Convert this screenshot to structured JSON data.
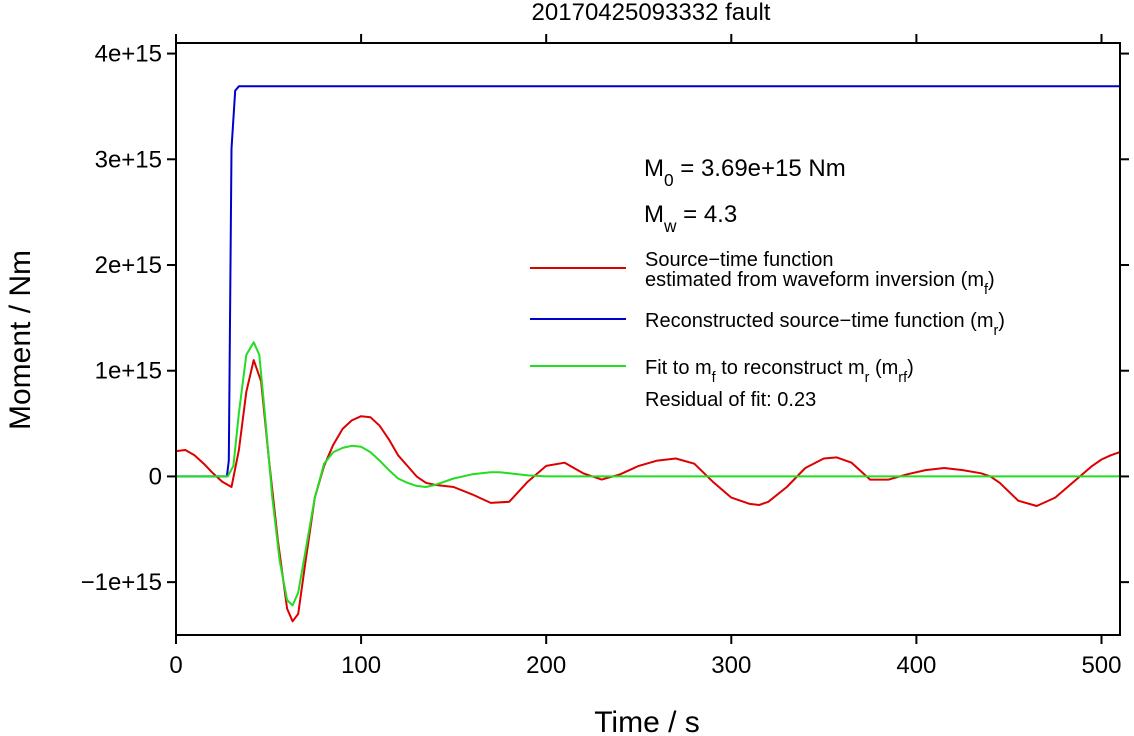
{
  "chart_data": {
    "type": "line",
    "title": "20170425093332 fault",
    "xlabel": "Time / s",
    "ylabel": "Moment / Nm",
    "xlim": [
      0,
      510
    ],
    "ylim": [
      -1500000000000000.0,
      4100000000000000.0
    ],
    "grid": false,
    "x_ticks": [
      0,
      100,
      200,
      300,
      400,
      500
    ],
    "x_tick_labels": [
      "0",
      "100",
      "200",
      "300",
      "400",
      "500"
    ],
    "y_ticks": [
      -1000000000000000.0,
      0,
      1000000000000000.0,
      2000000000000000.0,
      3000000000000000.0,
      4000000000000000.0
    ],
    "y_tick_labels": [
      "−1e+15",
      "0",
      "1e+15",
      "2e+15",
      "3e+15",
      "4e+15"
    ],
    "legend_position": "right",
    "annotations": {
      "m0": {
        "sym": "M",
        "sub": "0",
        "text": " = 3.69e+15 Nm"
      },
      "mw": {
        "sym": "M",
        "sub": "w",
        "text": " = 4.3"
      },
      "residual": "Residual of fit: 0.23"
    },
    "series": [
      {
        "key": "mf",
        "name": "Source−time function estimated from waveform inversion (mf)",
        "color": "#dd0000",
        "legend_parts": [
          [
            "Source−time function"
          ],
          [
            "estimated from waveform inversion (m",
            "f",
            ")"
          ]
        ],
        "x": [
          0,
          5,
          10,
          15,
          20,
          25,
          30,
          34,
          38,
          42,
          46,
          50,
          55,
          60,
          63,
          66,
          70,
          75,
          80,
          85,
          90,
          95,
          100,
          105,
          110,
          115,
          120,
          125,
          130,
          135,
          140,
          150,
          160,
          170,
          180,
          190,
          200,
          210,
          220,
          230,
          240,
          250,
          260,
          270,
          280,
          290,
          300,
          310,
          315,
          320,
          330,
          340,
          350,
          357,
          365,
          375,
          385,
          395,
          405,
          415,
          425,
          435,
          440,
          445,
          455,
          465,
          475,
          485,
          495,
          500,
          505,
          510
        ],
        "y": [
          240000000000000.0,
          250000000000000.0,
          200000000000000.0,
          120000000000000.0,
          30000000000000.0,
          -50000000000000.0,
          -100000000000000.0,
          250000000000000.0,
          800000000000000.0,
          1100000000000000.0,
          900000000000000.0,
          200000000000000.0,
          -600000000000000.0,
          -1250000000000000.0,
          -1370000000000000.0,
          -1300000000000000.0,
          -800000000000000.0,
          -200000000000000.0,
          100000000000000.0,
          300000000000000.0,
          450000000000000.0,
          530000000000000.0,
          570000000000000.0,
          560000000000000.0,
          480000000000000.0,
          350000000000000.0,
          200000000000000.0,
          100000000000000.0,
          0,
          -60000000000000.0,
          -80000000000000.0,
          -100000000000000.0,
          -170000000000000.0,
          -250000000000000.0,
          -240000000000000.0,
          -50000000000000.0,
          100000000000000.0,
          130000000000000.0,
          30000000000000.0,
          -30000000000000.0,
          20000000000000.0,
          100000000000000.0,
          150000000000000.0,
          170000000000000.0,
          120000000000000.0,
          -50000000000000.0,
          -200000000000000.0,
          -260000000000000.0,
          -270000000000000.0,
          -240000000000000.0,
          -100000000000000.0,
          80000000000000.0,
          170000000000000.0,
          180000000000000.0,
          130000000000000.0,
          -30000000000000.0,
          -30000000000000.0,
          20000000000000.0,
          60000000000000.0,
          80000000000000.0,
          60000000000000.0,
          30000000000000.0,
          0,
          -60000000000000.0,
          -230000000000000.0,
          -280000000000000.0,
          -200000000000000.0,
          -50000000000000.0,
          100000000000000.0,
          160000000000000.0,
          200000000000000.0,
          230000000000000.0
        ]
      },
      {
        "key": "mr",
        "name": "Reconstructed source−time function (mr)",
        "color": "#0000cc",
        "legend_parts": [
          [
            "Reconstructed source−time function (m",
            "r",
            ")"
          ]
        ],
        "x": [
          0,
          27.5,
          28.5,
          30,
          32,
          34,
          510
        ],
        "y": [
          0,
          0,
          150000000000000.0,
          3100000000000000.0,
          3650000000000000.0,
          3690000000000000.0,
          3690000000000000.0
        ]
      },
      {
        "key": "mrf",
        "name": "Fit to mf to reconstruct mr (mrf)",
        "color": "#22dd22",
        "legend_parts": [
          [
            "Fit to m",
            "f",
            " to reconstruct m",
            "r",
            " (m",
            "rf",
            ")"
          ]
        ],
        "x": [
          0,
          28,
          31,
          34,
          38,
          42,
          45,
          48,
          52,
          56,
          60,
          63,
          66,
          70,
          75,
          80,
          85,
          90,
          95,
          100,
          105,
          110,
          115,
          120,
          125,
          130,
          135,
          140,
          150,
          160,
          170,
          175,
          180,
          190,
          200,
          220,
          250,
          300,
          400,
          510
        ],
        "y": [
          0,
          0,
          100000000000000.0,
          600000000000000.0,
          1150000000000000.0,
          1270000000000000.0,
          1150000000000000.0,
          600000000000000.0,
          -200000000000000.0,
          -800000000000000.0,
          -1170000000000000.0,
          -1220000000000000.0,
          -1100000000000000.0,
          -700000000000000.0,
          -200000000000000.0,
          120000000000000.0,
          230000000000000.0,
          270000000000000.0,
          290000000000000.0,
          280000000000000.0,
          230000000000000.0,
          150000000000000.0,
          60000000000000.0,
          -20000000000000.0,
          -60000000000000.0,
          -90000000000000.0,
          -100000000000000.0,
          -80000000000000.0,
          -20000000000000.0,
          20000000000000.0,
          40000000000000.0,
          40000000000000.0,
          30000000000000.0,
          10000000000000.0,
          0,
          0,
          0,
          0,
          0,
          0
        ]
      }
    ]
  }
}
